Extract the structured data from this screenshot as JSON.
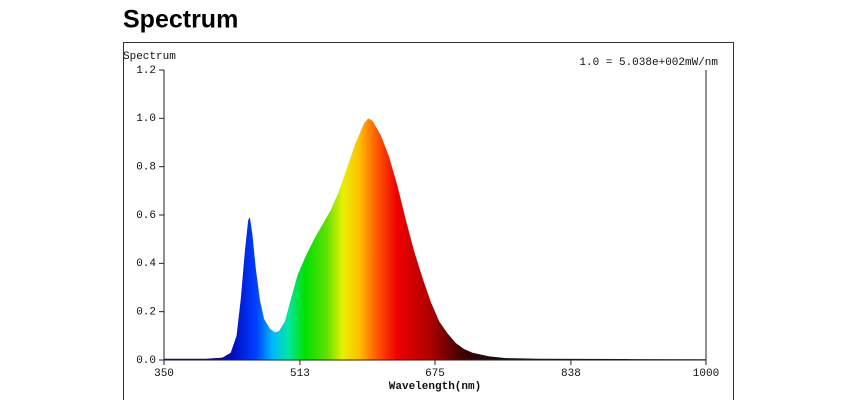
{
  "chart_data": {
    "type": "area",
    "title": "Spectrum",
    "y_label": "Spectrum",
    "x_label": "Wavelength(nm)",
    "annotation": "1.0 = 5.038e+002mW/nm",
    "x": [
      350,
      400,
      420,
      430,
      437,
      442,
      447,
      451,
      453,
      456,
      460,
      465,
      470,
      477,
      483,
      488,
      495,
      502,
      510,
      520,
      530,
      540,
      550,
      560,
      570,
      580,
      590,
      595,
      600,
      610,
      620,
      630,
      640,
      650,
      660,
      670,
      680,
      690,
      700,
      710,
      720,
      740,
      760,
      800,
      900,
      1000
    ],
    "values": [
      0.005,
      0.005,
      0.01,
      0.03,
      0.1,
      0.25,
      0.45,
      0.58,
      0.59,
      0.52,
      0.38,
      0.25,
      0.17,
      0.13,
      0.115,
      0.12,
      0.16,
      0.25,
      0.35,
      0.43,
      0.5,
      0.56,
      0.62,
      0.7,
      0.8,
      0.9,
      0.98,
      1.0,
      0.99,
      0.93,
      0.84,
      0.72,
      0.58,
      0.45,
      0.34,
      0.24,
      0.16,
      0.11,
      0.07,
      0.045,
      0.03,
      0.015,
      0.008,
      0.005,
      0.004,
      0.003
    ],
    "xlim": [
      350,
      1000
    ],
    "xticks": [
      350,
      513,
      675,
      838,
      1000
    ],
    "ylim": [
      0,
      1.2
    ],
    "yticks": [
      {
        "value": 0,
        "label": "0.0"
      },
      {
        "value": 0.2,
        "label": "0.2"
      },
      {
        "value": 0.4,
        "label": "0.4"
      },
      {
        "value": 0.6,
        "label": "0.6"
      },
      {
        "value": 0.8,
        "label": "0.8"
      },
      {
        "value": 1,
        "label": "1.0"
      },
      {
        "value": 1.2,
        "label": "1.2"
      }
    ],
    "grid": false
  }
}
